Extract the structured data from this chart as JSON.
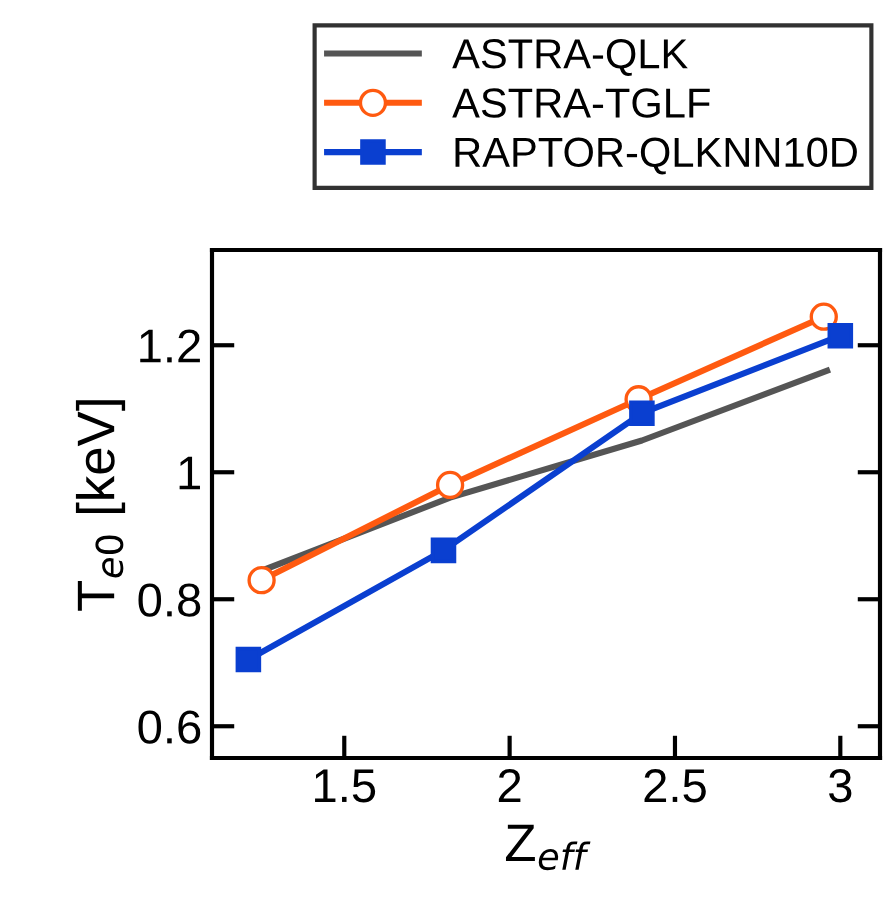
{
  "chart_data": {
    "type": "line",
    "xlabel": "Z$_{eff}$",
    "ylabel": "T$_{e0}$ [keV]",
    "xlim": [
      1.1,
      3.12
    ],
    "ylim": [
      0.55,
      1.35
    ],
    "xticks": [
      1.5,
      2,
      2.5,
      3
    ],
    "yticks": [
      0.6,
      0.8,
      1,
      1.2
    ],
    "grid": false,
    "legend": "top",
    "series": [
      {
        "name": "ASTRA-QLK",
        "color": "#555555",
        "marker": "none",
        "x": [
          1.25,
          1.82,
          2.4,
          2.96
        ],
        "values": [
          0.845,
          0.96,
          1.05,
          1.16
        ]
      },
      {
        "name": "ASTRA-TGLF",
        "color": "#ff5a10",
        "marker": "circle",
        "x": [
          1.25,
          1.82,
          2.39,
          2.95
        ],
        "values": [
          0.83,
          0.98,
          1.115,
          1.245
        ]
      },
      {
        "name": "RAPTOR-QLKNN10D",
        "color": "#0a3fd0",
        "marker": "square",
        "x": [
          1.21,
          1.8,
          2.4,
          3.0
        ],
        "values": [
          0.705,
          0.877,
          1.093,
          1.215
        ]
      }
    ]
  }
}
